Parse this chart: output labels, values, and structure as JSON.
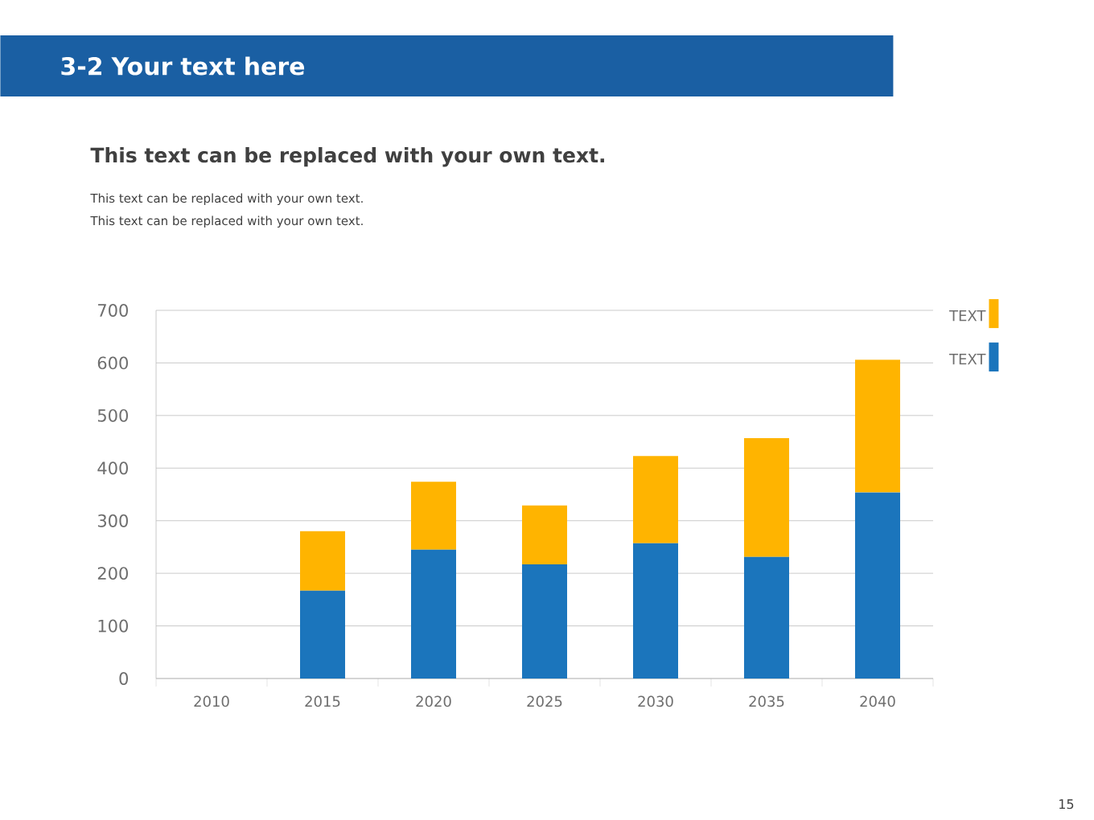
{
  "chart_data": {
    "type": "bar",
    "stacked": true,
    "title": "3-2 Your text here",
    "subtitle": "This text can be replaced with your own text.",
    "annotations": [
      "This text can be replaced with your own text.",
      "This text can be replaced with your own text.",
      "15"
    ],
    "categories": [
      "2010",
      "2015",
      "2020",
      "2025",
      "2030",
      "2035",
      "2040"
    ],
    "series": [
      {
        "name": "TEXT",
        "color": "#1b75bc",
        "values": [
          0,
          167,
          245,
          217,
          257,
          231,
          354
        ]
      },
      {
        "name": "TEXT",
        "color": "#ffb400",
        "values": [
          0,
          113,
          129,
          112,
          166,
          226,
          252
        ]
      }
    ],
    "ylim": [
      0,
      700
    ],
    "yticks": [
      0,
      100,
      200,
      300,
      400,
      500,
      600,
      700
    ],
    "grid": "y",
    "legend": "top right"
  }
}
